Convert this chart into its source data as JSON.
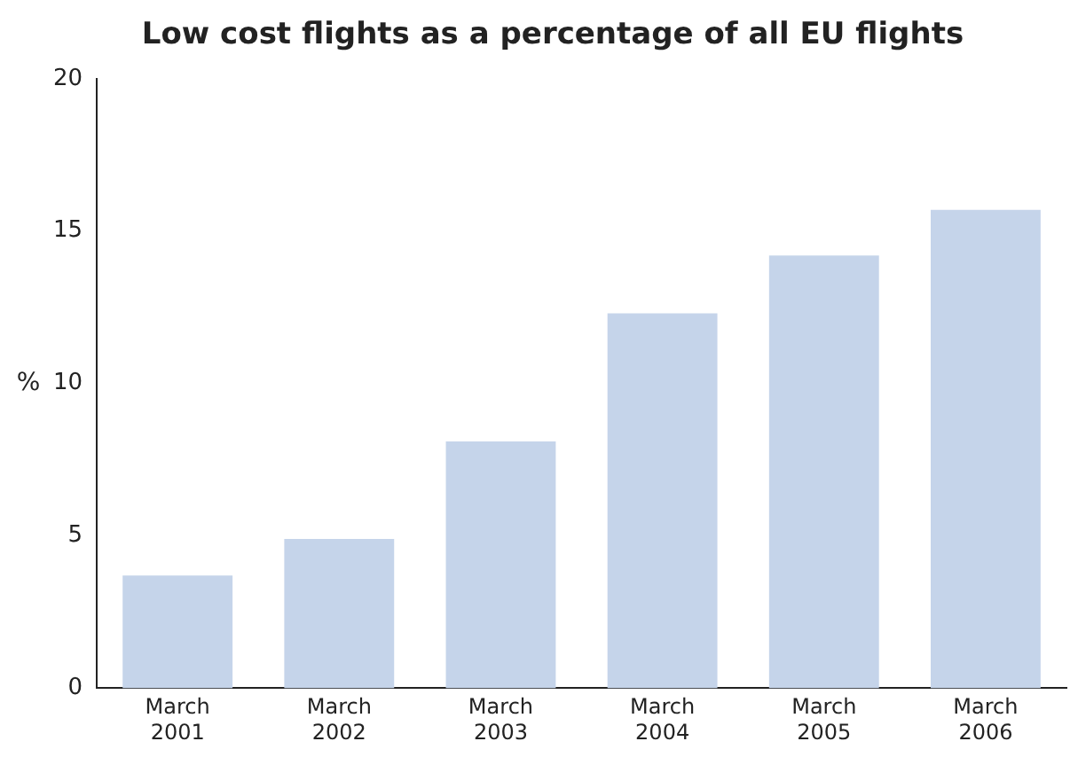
{
  "chart_data": {
    "type": "bar",
    "title": "Low cost flights as a percentage of all EU flights",
    "ylabel": "%",
    "categories": [
      "March 2001",
      "March 2002",
      "March 2003",
      "March 2004",
      "March 2005",
      "March 2006"
    ],
    "values": [
      3.7,
      4.9,
      8.1,
      12.3,
      14.2,
      15.7
    ],
    "color": "#c5d4ea",
    "ylim": [
      0,
      20
    ],
    "yticks": [
      0,
      5,
      10,
      15,
      20
    ],
    "grid": false,
    "legend": false
  }
}
